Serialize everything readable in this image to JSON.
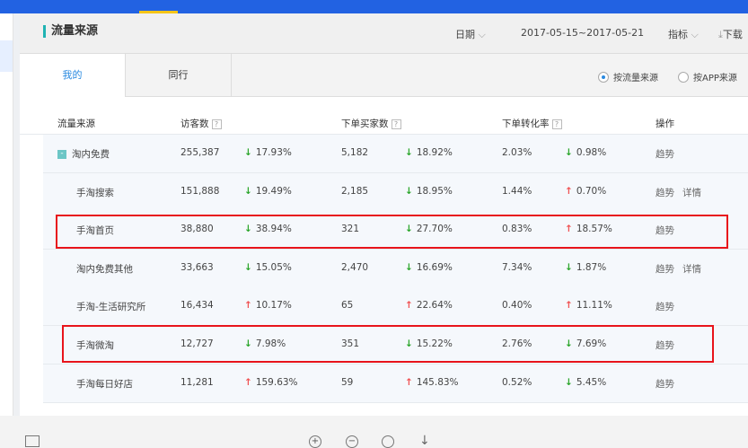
{
  "header": {
    "title": "流量来源",
    "date_label": "日期",
    "date_range": "2017-05-15~2017-05-21",
    "metric_label": "指标",
    "download_label": "下载"
  },
  "tabs": [
    {
      "label": "我的",
      "active": true
    },
    {
      "label": "同行",
      "active": false
    }
  ],
  "radios": [
    {
      "label": "按流量来源",
      "checked": true
    },
    {
      "label": "按APP来源",
      "checked": false
    }
  ],
  "columns": {
    "source": "流量来源",
    "visitors": "访客数",
    "buyers": "下单买家数",
    "conversion": "下单转化率",
    "ops": "操作",
    "help": "?"
  },
  "rows": [
    {
      "name": "淘内免费",
      "group": true,
      "visitors": "255,387",
      "v_dir": "down",
      "v_chg": "17.93%",
      "buyers": "5,182",
      "b_dir": "down",
      "b_chg": "18.92%",
      "conv": "2.03%",
      "c_dir": "down",
      "c_chg": "0.98%",
      "ops": [
        "趋势"
      ]
    },
    {
      "name": "手淘搜索",
      "visitors": "151,888",
      "v_dir": "down",
      "v_chg": "19.49%",
      "buyers": "2,185",
      "b_dir": "down",
      "b_chg": "18.95%",
      "conv": "1.44%",
      "c_dir": "up",
      "c_chg": "0.70%",
      "ops": [
        "趋势",
        "详情"
      ]
    },
    {
      "name": "手淘首页",
      "highlight": true,
      "visitors": "38,880",
      "v_dir": "down",
      "v_chg": "38.94%",
      "buyers": "321",
      "b_dir": "down",
      "b_chg": "27.70%",
      "conv": "0.83%",
      "c_dir": "up",
      "c_chg": "18.57%",
      "ops": [
        "趋势"
      ]
    },
    {
      "name": "淘内免费其他",
      "visitors": "33,663",
      "v_dir": "down",
      "v_chg": "15.05%",
      "buyers": "2,470",
      "b_dir": "down",
      "b_chg": "16.69%",
      "conv": "7.34%",
      "c_dir": "down",
      "c_chg": "1.87%",
      "ops": [
        "趋势",
        "详情"
      ]
    },
    {
      "name": "手淘-生活研究所",
      "visitors": "16,434",
      "v_dir": "up",
      "v_chg": "10.17%",
      "buyers": "65",
      "b_dir": "up",
      "b_chg": "22.64%",
      "conv": "0.40%",
      "c_dir": "up",
      "c_chg": "11.11%",
      "ops": [
        "趋势"
      ]
    },
    {
      "name": "手淘微淘",
      "highlight": true,
      "visitors": "12,727",
      "v_dir": "down",
      "v_chg": "7.98%",
      "buyers": "351",
      "b_dir": "down",
      "b_chg": "15.22%",
      "conv": "2.76%",
      "c_dir": "down",
      "c_chg": "7.69%",
      "ops": [
        "趋势"
      ]
    },
    {
      "name": "手淘每日好店",
      "visitors": "11,281",
      "v_dir": "up",
      "v_chg": "159.63%",
      "buyers": "59",
      "b_dir": "up",
      "b_chg": "145.83%",
      "conv": "0.52%",
      "c_dir": "down",
      "c_chg": "5.45%",
      "ops": [
        "趋势"
      ]
    }
  ],
  "colors": {
    "brand": "#2262e2",
    "accent": "#1fb3b3",
    "up": "#f05050",
    "down": "#2aa52a",
    "highlight_box": "#e8141b"
  },
  "icons": {
    "up": "↑",
    "down": "↓"
  }
}
